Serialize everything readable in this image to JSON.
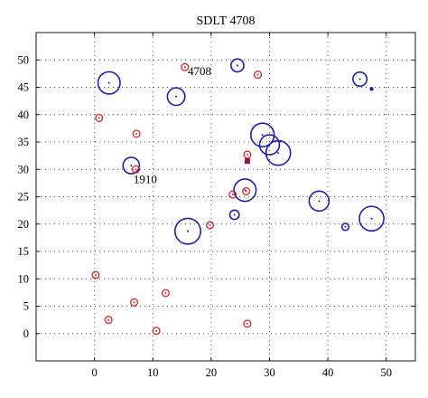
{
  "chart_data": {
    "type": "scatter",
    "title": "SDLT 4708",
    "xlabel": "",
    "ylabel": "",
    "xlim": [
      -10,
      55
    ],
    "ylim": [
      -5,
      55
    ],
    "x_ticks": [
      0,
      10,
      20,
      30,
      40,
      50
    ],
    "y_ticks": [
      0,
      5,
      10,
      15,
      20,
      25,
      30,
      35,
      40,
      45,
      50
    ],
    "grid": true,
    "colors": {
      "blue": "#1f1fa8",
      "red": "#d02828",
      "marker": "#8b1a4a"
    },
    "series": [
      {
        "style": "blue-circle",
        "points": [
          {
            "x": 2.5,
            "y": 45.8,
            "r": 1.9
          },
          {
            "x": 14.0,
            "y": 43.3,
            "r": 1.5
          },
          {
            "x": 24.5,
            "y": 49.0,
            "r": 1.1
          },
          {
            "x": 45.5,
            "y": 46.5,
            "r": 1.2
          },
          {
            "x": 6.3,
            "y": 30.7,
            "r": 1.4
          },
          {
            "x": 28.8,
            "y": 36.3,
            "r": 2.0
          },
          {
            "x": 30.0,
            "y": 34.5,
            "r": 1.7
          },
          {
            "x": 31.5,
            "y": 33.0,
            "r": 2.1
          },
          {
            "x": 25.8,
            "y": 26.2,
            "r": 1.9
          },
          {
            "x": 24.0,
            "y": 21.7,
            "r": 0.8
          },
          {
            "x": 38.5,
            "y": 24.2,
            "r": 1.7
          },
          {
            "x": 47.5,
            "y": 21.0,
            "r": 2.1
          },
          {
            "x": 43.0,
            "y": 19.5,
            "r": 0.6
          },
          {
            "x": 16.0,
            "y": 18.7,
            "r": 2.2
          }
        ]
      },
      {
        "style": "red-circle",
        "points": [
          {
            "x": 15.5,
            "y": 48.7,
            "r": 0.6
          },
          {
            "x": 28.0,
            "y": 47.3,
            "r": 0.6
          },
          {
            "x": 0.8,
            "y": 39.4,
            "r": 0.6
          },
          {
            "x": 7.2,
            "y": 36.5,
            "r": 0.6
          },
          {
            "x": 26.2,
            "y": 32.7,
            "r": 0.6
          },
          {
            "x": 7.1,
            "y": 30.0,
            "r": 0.6
          },
          {
            "x": 23.7,
            "y": 25.4,
            "r": 0.6
          },
          {
            "x": 26.0,
            "y": 26.0,
            "r": 0.6
          },
          {
            "x": 19.8,
            "y": 19.8,
            "r": 0.6
          },
          {
            "x": 0.2,
            "y": 10.7,
            "r": 0.6
          },
          {
            "x": 12.2,
            "y": 7.4,
            "r": 0.6
          },
          {
            "x": 6.8,
            "y": 5.7,
            "r": 0.6
          },
          {
            "x": 2.4,
            "y": 2.5,
            "r": 0.6
          },
          {
            "x": 26.2,
            "y": 1.8,
            "r": 0.6
          },
          {
            "x": 10.6,
            "y": 0.5,
            "r": 0.6
          }
        ]
      },
      {
        "style": "blue-dot",
        "points": [
          {
            "x": 47.5,
            "y": 44.7
          }
        ]
      },
      {
        "style": "square-marker",
        "points": [
          {
            "x": 26.2,
            "y": 31.5
          }
        ]
      }
    ],
    "annotations": [
      {
        "text": "4708",
        "x": 16.0,
        "y": 47.2
      },
      {
        "text": "1910",
        "x": 6.7,
        "y": 27.5
      }
    ]
  }
}
